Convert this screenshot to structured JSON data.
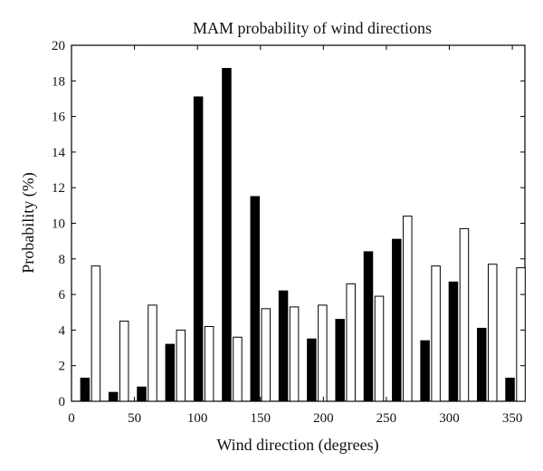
{
  "chart_data": {
    "type": "bar",
    "title": "MAM probability of wind directions",
    "xlabel": "Wind direction (degrees)",
    "ylabel": "Probability (%)",
    "xlim": [
      0,
      360
    ],
    "ylim": [
      0,
      20
    ],
    "xticks": [
      0,
      50,
      100,
      150,
      200,
      250,
      300,
      350
    ],
    "yticks": [
      0,
      2,
      4,
      6,
      8,
      10,
      12,
      14,
      16,
      18,
      20
    ],
    "x": [
      15,
      37.5,
      60,
      82.5,
      105,
      127.5,
      150,
      172.5,
      195,
      217.5,
      240,
      262.5,
      285,
      307.5,
      330,
      352.5
    ],
    "series": [
      {
        "color": "#000000",
        "values": [
          1.3,
          0.5,
          0.8,
          3.2,
          17.1,
          18.7,
          11.5,
          6.2,
          3.5,
          4.6,
          8.4,
          9.1,
          3.4,
          6.7,
          4.1,
          1.3
        ]
      },
      {
        "color": "#ffffff",
        "values": [
          7.6,
          4.5,
          5.4,
          4.0,
          4.2,
          3.6,
          5.2,
          5.3,
          5.4,
          6.6,
          5.9,
          10.4,
          7.6,
          9.7,
          7.7,
          7.5
        ]
      }
    ],
    "grid": false,
    "legend": "none"
  }
}
